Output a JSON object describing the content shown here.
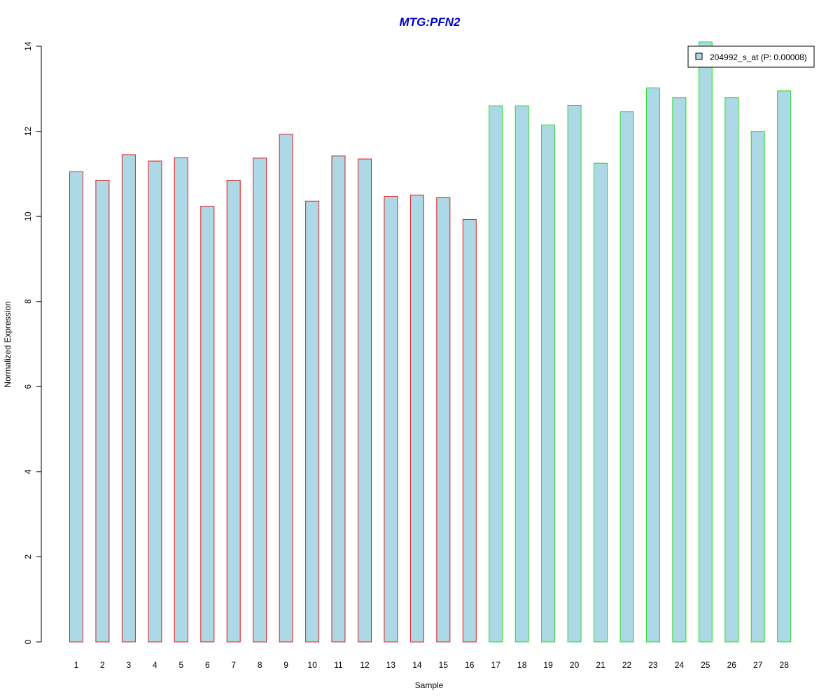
{
  "colors": {
    "title": "#0000cc",
    "bar_fill": "#add8e6",
    "group1_border": "#e31a1c",
    "group2_border": "#22dd22",
    "axis": "#000000"
  },
  "chart_data": {
    "type": "bar",
    "title": "MTG:PFN2",
    "xlabel": "Sample",
    "ylabel": "Normalized Expression",
    "ylim": [
      0,
      14
    ],
    "yticks": [
      0,
      2,
      4,
      6,
      8,
      10,
      12,
      14
    ],
    "grid": false,
    "legend_position": "top-right",
    "categories": [
      "1",
      "2",
      "3",
      "4",
      "5",
      "6",
      "7",
      "8",
      "9",
      "10",
      "11",
      "12",
      "13",
      "14",
      "15",
      "16",
      "17",
      "18",
      "19",
      "20",
      "21",
      "22",
      "23",
      "24",
      "25",
      "26",
      "27",
      "28"
    ],
    "series": [
      {
        "name": "204992_s_at (P: 0.00008)",
        "values": [
          11.05,
          10.85,
          11.45,
          11.3,
          11.38,
          10.24,
          10.85,
          11.37,
          11.93,
          10.36,
          11.42,
          11.35,
          10.47,
          10.5,
          10.44,
          9.93,
          12.6,
          12.6,
          12.15,
          12.61,
          11.25,
          12.46,
          13.02,
          12.79,
          14.1,
          12.79,
          12.0,
          12.95
        ]
      }
    ],
    "groups": [
      1,
      1,
      1,
      1,
      1,
      1,
      1,
      1,
      1,
      1,
      1,
      1,
      1,
      1,
      1,
      1,
      2,
      2,
      2,
      2,
      2,
      2,
      2,
      2,
      2,
      2,
      2,
      2
    ]
  }
}
